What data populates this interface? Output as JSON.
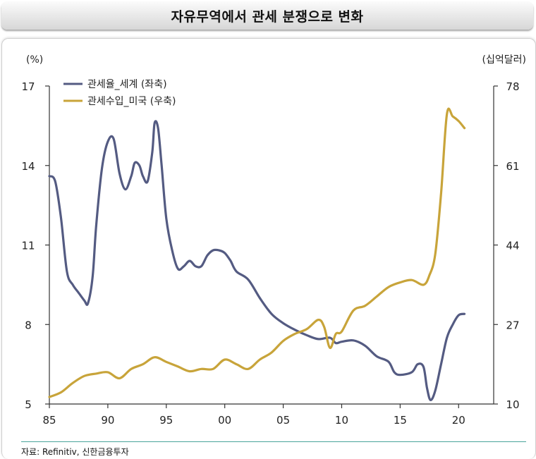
{
  "header": {
    "title": "자유무역에서 관세 분쟁으로 변화"
  },
  "source_note": "자료: Refinitiv, 신한금융투자",
  "colors": {
    "tariff_rate": "#545b82",
    "tariff_revenue": "#c8a43a",
    "source_line": "#49a59a"
  },
  "chart_data": {
    "type": "line",
    "title": "자유무역에서 관세 분쟁으로 변화",
    "y_left_unit": "(%)",
    "y_right_unit": "(십억달러)",
    "x_ticks": [
      "85",
      "90",
      "95",
      "00",
      "05",
      "10",
      "15",
      "20"
    ],
    "x_tick_values": [
      1985,
      1990,
      1995,
      2000,
      2005,
      2010,
      2015,
      2020
    ],
    "xlim": [
      1985,
      2023
    ],
    "y_left_ticks": [
      "17",
      "14",
      "11",
      "8",
      "5"
    ],
    "y_left_tick_values": [
      17,
      14,
      11,
      8,
      5
    ],
    "ylim_left": [
      5,
      17
    ],
    "y_right_ticks": [
      "78",
      "61",
      "44",
      "27",
      "10"
    ],
    "y_right_tick_values": [
      78,
      61,
      44,
      27,
      10
    ],
    "ylim_right": [
      10,
      78
    ],
    "legend_position": "top-left",
    "series": [
      {
        "name": "관세율_세계 (좌축)",
        "axis": "left",
        "x": [
          1985,
          1985.5,
          1986,
          1986.5,
          1987,
          1987.5,
          1988,
          1988.3,
          1988.7,
          1989,
          1989.5,
          1990,
          1990.5,
          1991,
          1991.5,
          1992,
          1992.3,
          1992.7,
          1993,
          1993.4,
          1993.8,
          1994,
          1994.3,
          1994.6,
          1995,
          1995.5,
          1996,
          1996.5,
          1997,
          1997.5,
          1998,
          1998.5,
          1999,
          1999.5,
          2000,
          2000.5,
          2001,
          2002,
          2003,
          2004,
          2005,
          2006,
          2007,
          2008,
          2009,
          2009.5,
          2010,
          2011,
          2012,
          2013,
          2014,
          2014.5,
          2015,
          2016,
          2016.5,
          2017,
          2017.3,
          2017.6,
          2018,
          2018.5,
          2019,
          2019.5,
          2020,
          2020.5
        ],
        "values": [
          13.6,
          13.4,
          12.0,
          10.0,
          9.5,
          9.2,
          8.9,
          8.8,
          9.8,
          11.7,
          13.9,
          14.9,
          15.0,
          13.7,
          13.1,
          13.6,
          14.1,
          14.0,
          13.6,
          13.4,
          14.5,
          15.6,
          15.4,
          14.0,
          12.0,
          10.8,
          10.1,
          10.2,
          10.4,
          10.2,
          10.2,
          10.6,
          10.8,
          10.8,
          10.7,
          10.4,
          10.0,
          9.7,
          9.0,
          8.4,
          8.05,
          7.8,
          7.6,
          7.45,
          7.5,
          7.3,
          7.35,
          7.4,
          7.2,
          6.8,
          6.6,
          6.2,
          6.1,
          6.2,
          6.5,
          6.4,
          5.6,
          5.15,
          5.5,
          6.5,
          7.5,
          8.0,
          8.35,
          8.4
        ]
      },
      {
        "name": "관세수입_미국 (우축)",
        "axis": "right",
        "x": [
          1985,
          1986,
          1987,
          1988,
          1989,
          1990,
          1991,
          1992,
          1993,
          1994,
          1995,
          1996,
          1997,
          1998,
          1999,
          2000,
          2001,
          2002,
          2003,
          2004,
          2005,
          2006,
          2007,
          2008,
          2008.5,
          2009,
          2009.5,
          2010,
          2011,
          2012,
          2013,
          2014,
          2015,
          2016,
          2017,
          2017.5,
          2018,
          2018.5,
          2019,
          2019.5,
          2020,
          2020.5
        ],
        "values": [
          11.5,
          12.5,
          14.5,
          16.0,
          16.5,
          16.8,
          15.5,
          17.5,
          18.5,
          20.0,
          19.0,
          18.0,
          17.0,
          17.5,
          17.5,
          19.5,
          18.5,
          17.5,
          19.5,
          21.0,
          23.5,
          25.0,
          26.0,
          28.0,
          26.5,
          22.0,
          25.0,
          25.5,
          30.0,
          31.0,
          33.0,
          35.0,
          36.0,
          36.5,
          35.5,
          37.5,
          42.0,
          55.0,
          72.0,
          71.5,
          70.5,
          69.0
        ]
      }
    ]
  }
}
